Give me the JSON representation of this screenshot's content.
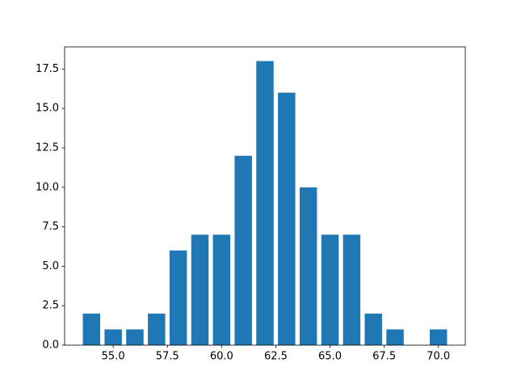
{
  "chart_data": {
    "type": "bar",
    "x": [
      54,
      55,
      56,
      57,
      58,
      59,
      60,
      61,
      62,
      63,
      64,
      65,
      66,
      67,
      68,
      70
    ],
    "values": [
      2,
      1,
      1,
      2,
      6,
      7,
      7,
      12,
      18,
      16,
      10,
      7,
      7,
      2,
      1,
      1
    ],
    "color": "#1f77b4",
    "xlim": [
      52.76,
      71.24
    ],
    "xticks": [
      {
        "value": 55,
        "label": "55.0"
      },
      {
        "value": 57.5,
        "label": "57.5"
      },
      {
        "value": 60,
        "label": "60.0"
      },
      {
        "value": 62.5,
        "label": "62.5"
      },
      {
        "value": 65,
        "label": "65.0"
      },
      {
        "value": 67.5,
        "label": "67.5"
      },
      {
        "value": 70,
        "label": "70.0"
      }
    ],
    "ylim": [
      0,
      18.9
    ],
    "yticks": [
      {
        "value": 0,
        "label": "0.0"
      },
      {
        "value": 2.5,
        "label": "2.5"
      },
      {
        "value": 5,
        "label": "5.0"
      },
      {
        "value": 7.5,
        "label": "7.5"
      },
      {
        "value": 10,
        "label": "10.0"
      },
      {
        "value": 12.5,
        "label": "12.5"
      },
      {
        "value": 15,
        "label": "15.0"
      },
      {
        "value": 17.5,
        "label": "17.5"
      }
    ],
    "grid": false
  }
}
